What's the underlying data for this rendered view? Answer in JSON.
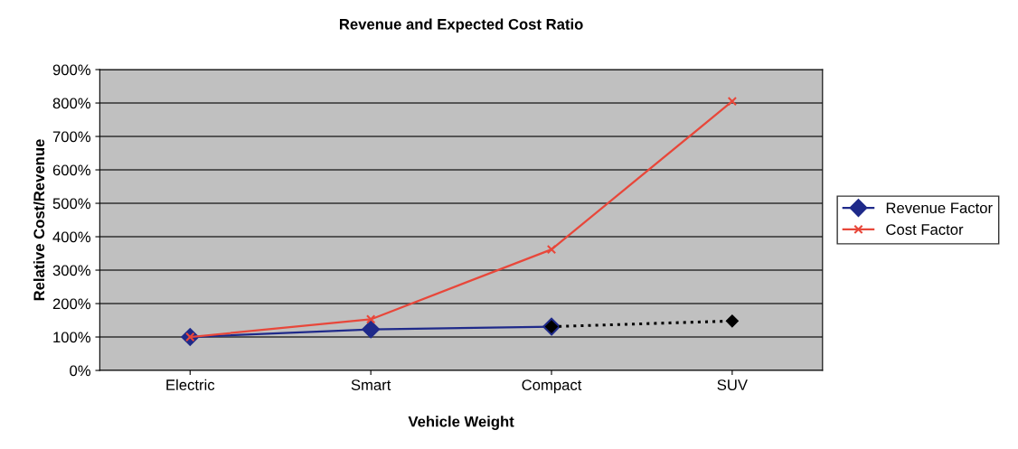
{
  "chart_data": {
    "type": "line",
    "title": "Revenue and Expected Cost Ratio",
    "xlabel": "Vehicle Weight",
    "ylabel": "Relative Cost/Revenue",
    "categories": [
      "Electric",
      "Smart",
      "Compact",
      "SUV"
    ],
    "series": [
      {
        "name": "Revenue Factor",
        "color": "#1f2a8a",
        "marker": "diamond",
        "line_style": "solid",
        "values": [
          100,
          123,
          131,
          null
        ]
      },
      {
        "color": "#000000",
        "marker": "diamond",
        "line_style": "dotted",
        "values": [
          null,
          null,
          131,
          148
        ]
      },
      {
        "name": "Cost Factor",
        "color": "#e8473a",
        "marker": "cross",
        "line_style": "solid",
        "values": [
          100,
          153,
          362,
          805
        ]
      }
    ],
    "ylim": [
      0,
      900
    ],
    "yticks": [
      {
        "value": 0,
        "label": "0%"
      },
      {
        "value": 100,
        "label": "100%"
      },
      {
        "value": 200,
        "label": "200%"
      },
      {
        "value": 300,
        "label": "300%"
      },
      {
        "value": 400,
        "label": "400%"
      },
      {
        "value": 500,
        "label": "500%"
      },
      {
        "value": 600,
        "label": "600%"
      },
      {
        "value": 700,
        "label": "700%"
      },
      {
        "value": 800,
        "label": "800%"
      },
      {
        "value": 900,
        "label": "900%"
      }
    ],
    "grid": "y",
    "legend": "right"
  }
}
